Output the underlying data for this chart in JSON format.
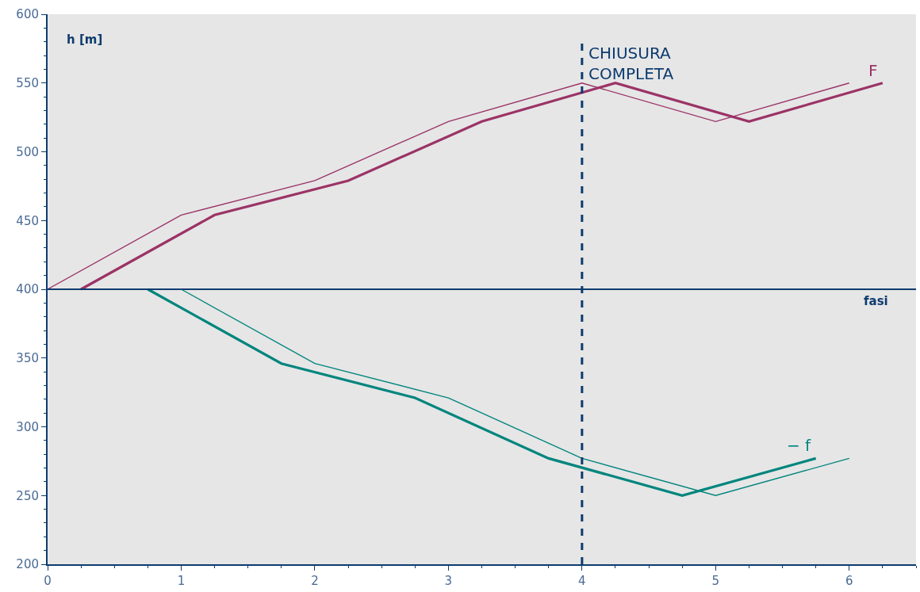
{
  "chart_data": {
    "type": "line",
    "xlabel": "fasi",
    "ylabel": "h [m]",
    "xlim": [
      0,
      6.5
    ],
    "xticks": [
      0,
      1,
      2,
      3,
      4,
      5,
      6
    ],
    "ylim": [
      200,
      600
    ],
    "yticks": [
      200,
      250,
      300,
      350,
      400,
      450,
      500,
      550,
      600
    ],
    "grid": false,
    "legend": false,
    "marker": "none",
    "series": [
      {
        "color": "#9b3366",
        "x": [
          0,
          1,
          2,
          3,
          4,
          5,
          6
        ],
        "values": [
          400,
          454,
          479,
          522,
          550,
          522,
          550
        ]
      },
      {
        "name": "F",
        "color": "#9b3366",
        "x": [
          0.25,
          1.25,
          2.25,
          3.25,
          4.25,
          5.25,
          6.25
        ],
        "values": [
          400,
          454,
          479,
          522,
          550,
          522,
          550
        ]
      },
      {
        "color": "#00857d",
        "x": [
          1,
          2,
          3,
          4,
          5,
          6
        ],
        "values": [
          400,
          346,
          321,
          277,
          250,
          277
        ]
      },
      {
        "name": "− f",
        "color": "#00857d",
        "x": [
          0.75,
          1.75,
          2.75,
          3.75,
          4.75,
          5.75
        ],
        "values": [
          400,
          346,
          321,
          277,
          250,
          277
        ]
      }
    ],
    "ref_lines": [
      {
        "axis": "y",
        "value": 400,
        "color": "#0d3b6e",
        "line_style": "solid"
      },
      {
        "axis": "x",
        "value": 4,
        "label": "CHIUSURA\nCOMPLETA",
        "color": "#0d3b6e",
        "line_style": "dashed"
      }
    ]
  }
}
